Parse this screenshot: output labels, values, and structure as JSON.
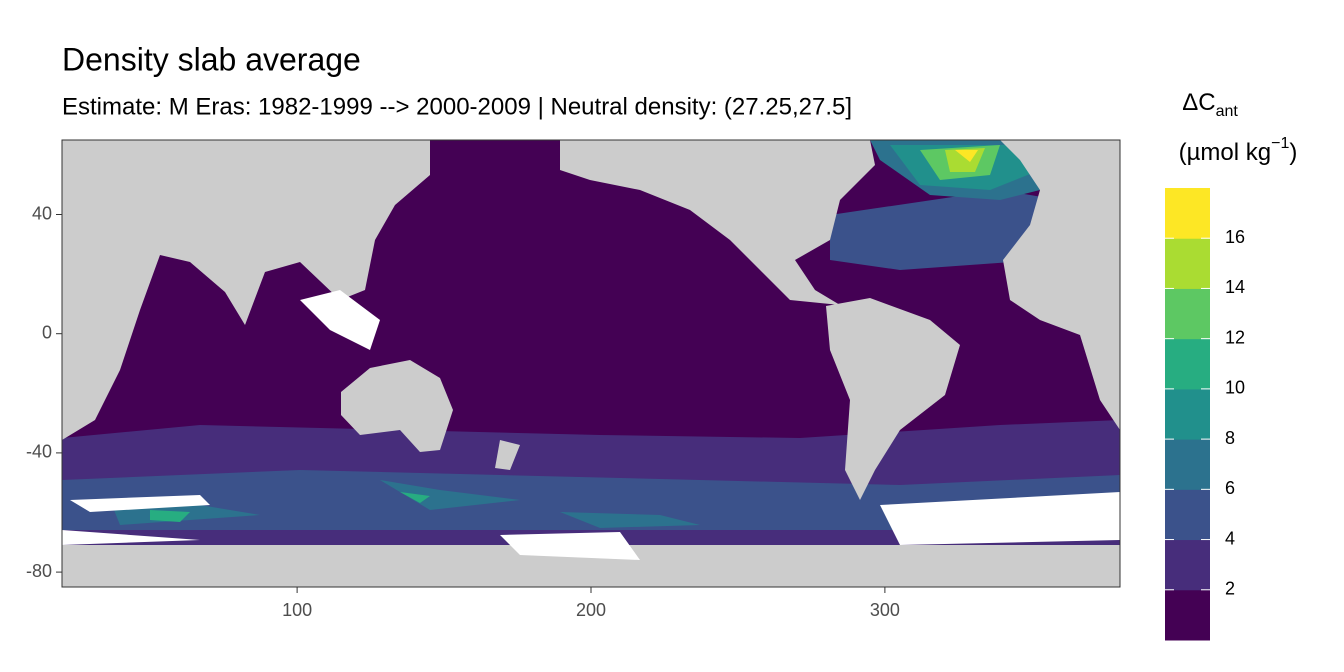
{
  "chart_data": {
    "type": "raster",
    "title": "Density slab average",
    "subtitle": "Estimate: M Eras: 1982-1999 --> 2000-2009 | Neutral density: (27.25,27.5]",
    "xlim": [
      20,
      380
    ],
    "xticks": [
      100,
      200,
      300
    ],
    "ylim": [
      -85,
      65
    ],
    "yticks": [
      -80,
      -40,
      0,
      40
    ],
    "legend": {
      "title": "ΔC",
      "title_sub": "ant",
      "unit": "(µmol kg",
      "unit_sup": "−1",
      "unit_close": ")",
      "limits": [
        0,
        18
      ],
      "breaks": [
        2,
        4,
        6,
        8,
        10,
        12,
        14,
        16
      ],
      "colors": [
        "#440154",
        "#472D7B",
        "#3B528B",
        "#2C728E",
        "#21908C",
        "#27AD81",
        "#5DC863",
        "#AADC32",
        "#FDE725"
      ]
    }
  }
}
